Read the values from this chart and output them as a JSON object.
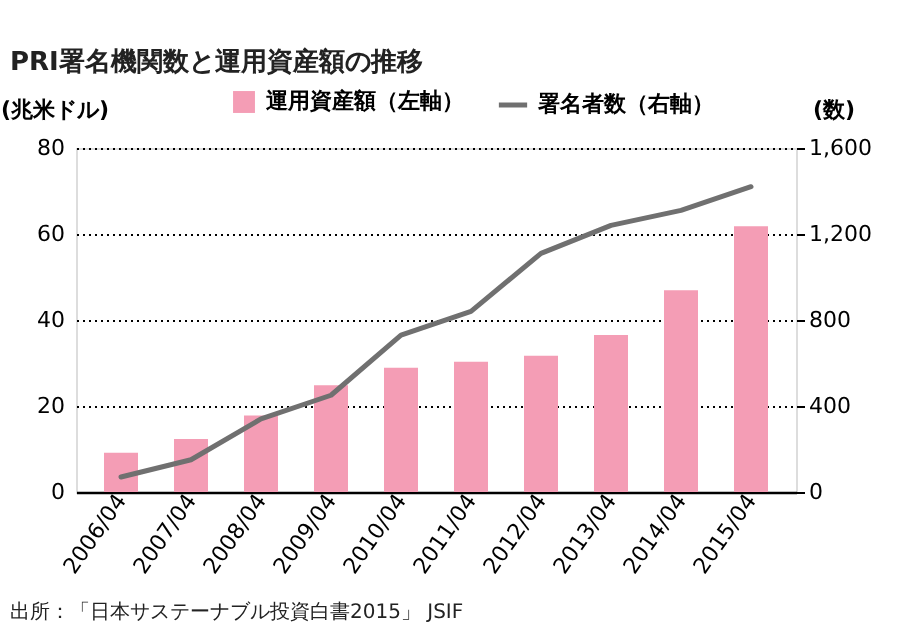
{
  "chart_data": {
    "type": "bar",
    "title": "PRI署名機関数と運用資産額の推移",
    "categories": [
      "2006/04",
      "2007/04",
      "2008/04",
      "2009/04",
      "2010/04",
      "2011/04",
      "2012/04",
      "2013/04",
      "2014/04",
      "2015/04"
    ],
    "series": [
      {
        "name": "運用資産額（左軸）",
        "color": "#f49db5",
        "values": [
          9.1,
          12.3,
          17.8,
          24.8,
          28.9,
          30.3,
          31.7,
          36.5,
          46.9,
          61.8
        ]
      },
      {
        "name": "署名者数（右軸）",
        "type": "line",
        "axis": "y2",
        "color": "#707070",
        "values": [
          70,
          150,
          340,
          450,
          730,
          840,
          1110,
          1240,
          1310,
          1420
        ]
      }
    ],
    "ylabel": "(兆米ドル)",
    "y2label": "(数)",
    "ylim": [
      0,
      80
    ],
    "yticks": [
      0,
      20,
      40,
      60,
      80
    ],
    "y2lim": [
      0,
      1600
    ],
    "y2ticks": [
      0,
      {
        "value": 400,
        "label": "400"
      },
      {
        "value": 800,
        "label": "800"
      },
      {
        "value": 1200,
        "label": "1,200"
      },
      {
        "value": 1600,
        "label": "1,600"
      }
    ],
    "grid": "y",
    "legend": "top",
    "annotations": [
      "出所：「日本サステーナブル投資白書2015」 JSIF"
    ]
  }
}
